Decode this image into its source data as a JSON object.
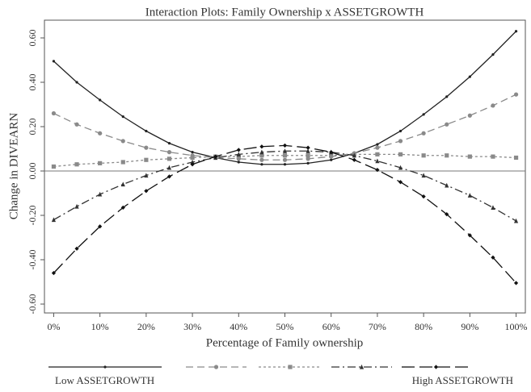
{
  "chart_data": {
    "type": "line",
    "title": "Interaction Plots: Family Ownership x ASSETGROWTH",
    "x_label": "Percentage of Family ownership",
    "y_label": "Change in DIVEARN",
    "x": [
      0,
      5,
      10,
      15,
      20,
      25,
      30,
      35,
      40,
      45,
      50,
      55,
      60,
      65,
      70,
      75,
      80,
      85,
      90,
      95,
      100
    ],
    "xlim": [
      -2,
      102
    ],
    "xticks": [
      {
        "value": 0,
        "label": "0%"
      },
      {
        "value": 10,
        "label": "10%"
      },
      {
        "value": 20,
        "label": "20%"
      },
      {
        "value": 30,
        "label": "30%"
      },
      {
        "value": 40,
        "label": "40%"
      },
      {
        "value": 50,
        "label": "50%"
      },
      {
        "value": 60,
        "label": "60%"
      },
      {
        "value": 70,
        "label": "70%"
      },
      {
        "value": 80,
        "label": "80%"
      },
      {
        "value": 90,
        "label": "90%"
      },
      {
        "value": 100,
        "label": "100%"
      }
    ],
    "ylim": [
      -0.64,
      0.68
    ],
    "yticks": [
      {
        "value": -0.6,
        "label": "-0.60"
      },
      {
        "value": -0.4,
        "label": "-0.40"
      },
      {
        "value": -0.2,
        "label": "-0.20"
      },
      {
        "value": 0,
        "label": "0.00"
      },
      {
        "value": 0.2,
        "label": "0.20"
      },
      {
        "value": 0.4,
        "label": "0.40"
      },
      {
        "value": 0.6,
        "label": "0.60"
      }
    ],
    "reference_line": 0,
    "series": [
      {
        "name": "Low ASSETGROWTH",
        "color": "#222222",
        "dash": "solid",
        "marker": "dot",
        "values": [
          0.495,
          0.4,
          0.32,
          0.245,
          0.18,
          0.125,
          0.085,
          0.06,
          0.04,
          0.03,
          0.03,
          0.035,
          0.05,
          0.08,
          0.12,
          0.18,
          0.255,
          0.335,
          0.425,
          0.525,
          0.63
        ]
      },
      {
        "color": "#8a8a8a",
        "dash": "dashed",
        "marker": "circle",
        "values": [
          0.26,
          0.21,
          0.17,
          0.135,
          0.105,
          0.085,
          0.07,
          0.06,
          0.055,
          0.05,
          0.05,
          0.055,
          0.065,
          0.08,
          0.105,
          0.135,
          0.17,
          0.21,
          0.25,
          0.295,
          0.345
        ]
      },
      {
        "color": "#8a8a8a",
        "dash": "dotted",
        "marker": "square",
        "values": [
          0.02,
          0.03,
          0.035,
          0.04,
          0.05,
          0.055,
          0.06,
          0.065,
          0.065,
          0.07,
          0.07,
          0.07,
          0.07,
          0.075,
          0.075,
          0.075,
          0.07,
          0.07,
          0.065,
          0.065,
          0.06
        ]
      },
      {
        "color": "#333333",
        "dash": "dashdot",
        "marker": "triangle",
        "values": [
          -0.22,
          -0.16,
          -0.105,
          -0.06,
          -0.02,
          0.015,
          0.04,
          0.06,
          0.075,
          0.085,
          0.09,
          0.09,
          0.085,
          0.07,
          0.045,
          0.015,
          -0.02,
          -0.065,
          -0.11,
          -0.165,
          -0.225
        ]
      },
      {
        "name": "High ASSETGROWTH",
        "color": "#111111",
        "dash": "longdash",
        "marker": "diamond",
        "values": [
          -0.46,
          -0.35,
          -0.25,
          -0.165,
          -0.09,
          -0.025,
          0.03,
          0.065,
          0.095,
          0.11,
          0.115,
          0.105,
          0.085,
          0.05,
          0.005,
          -0.05,
          -0.115,
          -0.195,
          -0.29,
          -0.39,
          -0.505
        ]
      }
    ]
  }
}
